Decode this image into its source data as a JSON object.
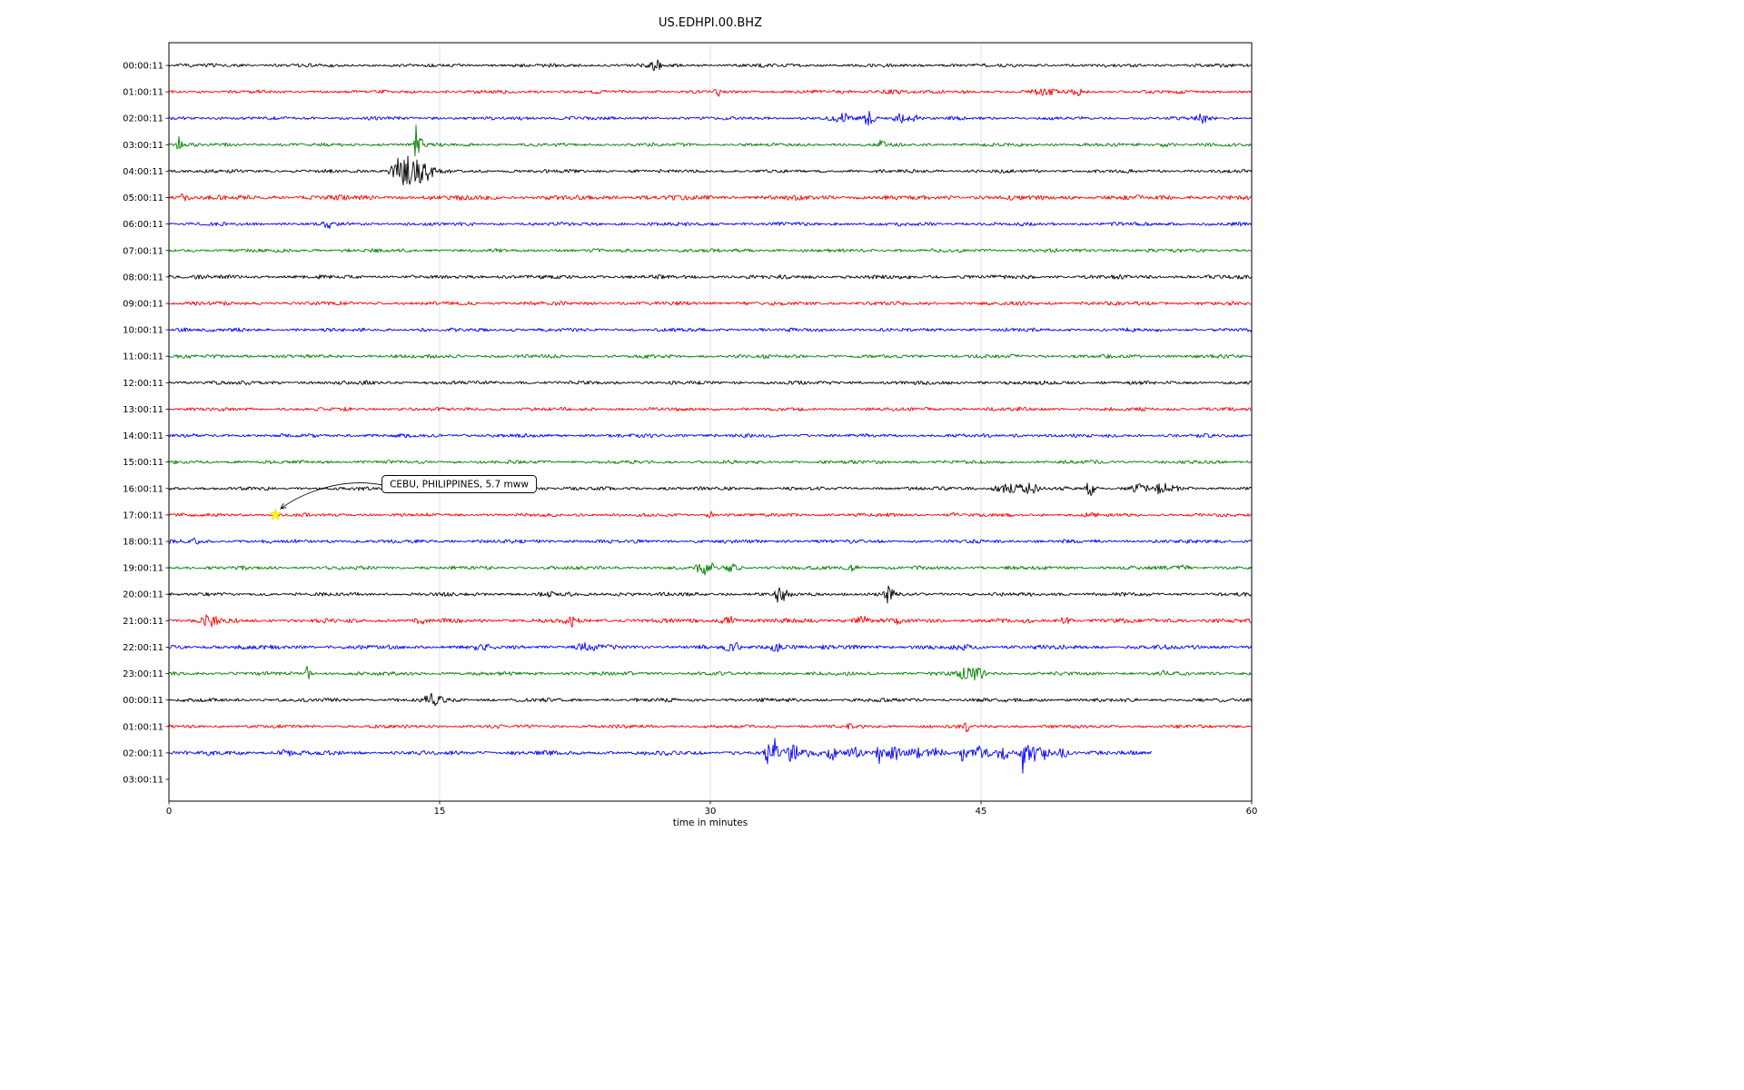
{
  "chart_data": {
    "type": "line",
    "variant": "seismogram-day-plot",
    "title": "US.EDHPI.00.BHZ",
    "xlabel": "time in minutes",
    "x_range_minutes": [
      0,
      60
    ],
    "x_ticks": [
      0,
      15,
      30,
      45,
      60
    ],
    "grid": {
      "vertical_lines_at": [
        15,
        30,
        45
      ],
      "color": "#d9d9d9"
    },
    "color_cycle": [
      "#000000",
      "#ff0000",
      "#0000ff",
      "#008000"
    ],
    "annotation": {
      "text": "CEBU, PHILIPPINES, 5.7 mww",
      "row_label": "17:00:11",
      "row_index": 17,
      "t_minutes": 5.9,
      "marker": "yellow-star",
      "marker_color": "#ffff00"
    },
    "rows": [
      {
        "label": "00:00:11",
        "color": "#000000",
        "base": 1.5,
        "duration": 60,
        "events": [
          [
            27.0,
            5,
            0.22
          ],
          [
            43.7,
            1.5,
            0.15
          ]
        ]
      },
      {
        "label": "01:00:11",
        "color": "#ff0000",
        "base": 1.5,
        "duration": 60,
        "events": [
          [
            30.5,
            3,
            0.18
          ],
          [
            40.0,
            2,
            0.45
          ],
          [
            48.4,
            2.5,
            0.5
          ],
          [
            50.3,
            3.5,
            0.22
          ]
        ]
      },
      {
        "label": "02:00:11",
        "color": "#0000ff",
        "base": 1.5,
        "duration": 60,
        "events": [
          [
            22.2,
            1.5,
            0.3
          ],
          [
            37.3,
            5,
            0.3
          ],
          [
            38.8,
            7,
            0.22
          ],
          [
            40.6,
            5,
            0.28
          ],
          [
            41.4,
            3.5,
            0.18
          ],
          [
            57.4,
            4.5,
            0.3
          ]
        ]
      },
      {
        "label": "03:00:11",
        "color": "#008000",
        "base": 1.5,
        "duration": 60,
        "events": [
          [
            0.55,
            8,
            0.1
          ],
          [
            13.7,
            20,
            0.07
          ],
          [
            13.95,
            6,
            0.15
          ],
          [
            39.5,
            6,
            0.12
          ],
          [
            55.2,
            2,
            0.25
          ]
        ]
      },
      {
        "label": "04:00:11",
        "color": "#000000",
        "base": 1.5,
        "duration": 60,
        "events": [
          [
            12.6,
            9,
            0.25
          ],
          [
            13.1,
            15,
            0.3
          ],
          [
            13.9,
            11,
            0.35
          ],
          [
            14.5,
            5,
            0.25
          ]
        ]
      },
      {
        "label": "05:00:11",
        "color": "#ff0000",
        "base": 2.1,
        "duration": 60,
        "events": [
          [
            0.7,
            2.5,
            0.3
          ]
        ]
      },
      {
        "label": "06:00:11",
        "color": "#0000ff",
        "base": 1.6,
        "duration": 60,
        "events": [
          [
            8.8,
            4.5,
            0.13
          ]
        ]
      },
      {
        "label": "07:00:11",
        "color": "#008000",
        "base": 1.6,
        "duration": 60,
        "events": []
      },
      {
        "label": "08:00:11",
        "color": "#000000",
        "base": 1.7,
        "duration": 60,
        "events": []
      },
      {
        "label": "09:00:11",
        "color": "#ff0000",
        "base": 1.7,
        "duration": 60,
        "events": []
      },
      {
        "label": "10:00:11",
        "color": "#0000ff",
        "base": 1.6,
        "duration": 60,
        "events": [
          [
            0.8,
            1.5,
            0.2
          ]
        ]
      },
      {
        "label": "11:00:11",
        "color": "#008000",
        "base": 1.6,
        "duration": 60,
        "events": []
      },
      {
        "label": "12:00:11",
        "color": "#000000",
        "base": 1.6,
        "duration": 60,
        "events": []
      },
      {
        "label": "13:00:11",
        "color": "#ff0000",
        "base": 1.6,
        "duration": 60,
        "events": []
      },
      {
        "label": "14:00:11",
        "color": "#0000ff",
        "base": 1.6,
        "duration": 60,
        "events": []
      },
      {
        "label": "15:00:11",
        "color": "#008000",
        "base": 1.5,
        "duration": 60,
        "events": []
      },
      {
        "label": "16:00:11",
        "color": "#000000",
        "base": 1.5,
        "duration": 60,
        "events": [
          [
            46.4,
            4.5,
            0.5
          ],
          [
            47.6,
            5,
            0.35
          ],
          [
            50.9,
            20,
            0.07
          ],
          [
            51.15,
            8,
            0.12
          ],
          [
            53.8,
            4.5,
            0.35
          ],
          [
            55.0,
            5,
            0.28
          ],
          [
            55.7,
            3.5,
            0.18
          ]
        ]
      },
      {
        "label": "17:00:11",
        "color": "#ff0000",
        "base": 1.5,
        "duration": 60,
        "events": [
          [
            30.0,
            3,
            0.13
          ],
          [
            43.5,
            2,
            0.18
          ],
          [
            51.0,
            1.8,
            0.2
          ]
        ]
      },
      {
        "label": "18:00:11",
        "color": "#0000ff",
        "base": 1.6,
        "duration": 60,
        "events": [
          [
            1.5,
            3,
            0.13
          ]
        ]
      },
      {
        "label": "19:00:11",
        "color": "#008000",
        "base": 1.6,
        "duration": 60,
        "events": [
          [
            29.6,
            5.5,
            0.28
          ],
          [
            30.05,
            3,
            0.2
          ],
          [
            31.2,
            3.5,
            0.3
          ],
          [
            37.9,
            3.5,
            0.28
          ],
          [
            56.2,
            2.5,
            0.22
          ]
        ]
      },
      {
        "label": "20:00:11",
        "color": "#000000",
        "base": 1.6,
        "duration": 60,
        "events": [
          [
            21.0,
            2,
            0.25
          ],
          [
            25.0,
            1.8,
            0.2
          ],
          [
            33.8,
            10,
            0.12
          ],
          [
            34.15,
            4.5,
            0.2
          ],
          [
            39.8,
            8,
            0.1
          ],
          [
            40.15,
            4.5,
            0.18
          ]
        ]
      },
      {
        "label": "21:00:11",
        "color": "#ff0000",
        "base": 1.9,
        "duration": 60,
        "events": [
          [
            2.3,
            6,
            0.28
          ],
          [
            14.0,
            2.5,
            0.18
          ],
          [
            22.3,
            5,
            0.22
          ],
          [
            31.0,
            4.5,
            0.3
          ],
          [
            38.4,
            5,
            0.28
          ],
          [
            40.3,
            2.5,
            0.18
          ],
          [
            49.7,
            3.5,
            0.22
          ],
          [
            55.5,
            2,
            0.18
          ]
        ]
      },
      {
        "label": "22:00:11",
        "color": "#0000ff",
        "base": 1.9,
        "duration": 60,
        "events": [
          [
            17.2,
            2.5,
            0.28
          ],
          [
            23.0,
            3,
            0.28
          ],
          [
            23.7,
            2.5,
            0.18
          ],
          [
            31.3,
            3.5,
            0.28
          ],
          [
            33.7,
            4.5,
            0.28
          ],
          [
            44.0,
            2,
            0.25
          ]
        ]
      },
      {
        "label": "23:00:11",
        "color": "#008000",
        "base": 1.6,
        "duration": 60,
        "events": [
          [
            7.7,
            8,
            0.1
          ],
          [
            44.3,
            7,
            0.35
          ],
          [
            44.9,
            5,
            0.25
          ],
          [
            55.2,
            2.5,
            0.2
          ]
        ]
      },
      {
        "label": "00:00:11",
        "color": "#000000",
        "base": 1.6,
        "duration": 60,
        "events": [
          [
            14.6,
            6,
            0.28
          ],
          [
            15.0,
            4.5,
            0.2
          ],
          [
            47.0,
            2,
            0.13
          ]
        ]
      },
      {
        "label": "01:00:11",
        "color": "#ff0000",
        "base": 1.5,
        "duration": 60,
        "events": [
          [
            37.7,
            1.8,
            0.18
          ],
          [
            44.2,
            6.5,
            0.08
          ]
        ]
      },
      {
        "label": "02:00:11",
        "color": "#0000ff",
        "base": 1.9,
        "duration": 54.5,
        "events": [
          [
            6.5,
            3,
            0.25
          ],
          [
            33.2,
            16,
            0.1
          ],
          [
            33.6,
            22,
            0.08
          ],
          [
            34.5,
            7,
            0.3
          ],
          [
            35.5,
            5,
            0.4
          ],
          [
            36.8,
            7,
            0.25
          ],
          [
            38.0,
            5,
            0.3
          ],
          [
            39.3,
            11,
            0.12
          ],
          [
            40.2,
            7,
            0.25
          ],
          [
            41.5,
            5,
            0.3
          ],
          [
            42.5,
            5,
            0.3
          ],
          [
            44.0,
            13,
            0.12
          ],
          [
            45.0,
            7,
            0.3
          ],
          [
            46.2,
            7,
            0.25
          ],
          [
            47.3,
            28,
            0.08
          ],
          [
            47.8,
            11,
            0.18
          ],
          [
            48.5,
            7,
            0.25
          ],
          [
            49.5,
            4,
            0.3
          ]
        ]
      },
      {
        "label": "03:00:11",
        "color": "#008000",
        "base": 1.5,
        "duration": 0,
        "events": []
      }
    ]
  }
}
